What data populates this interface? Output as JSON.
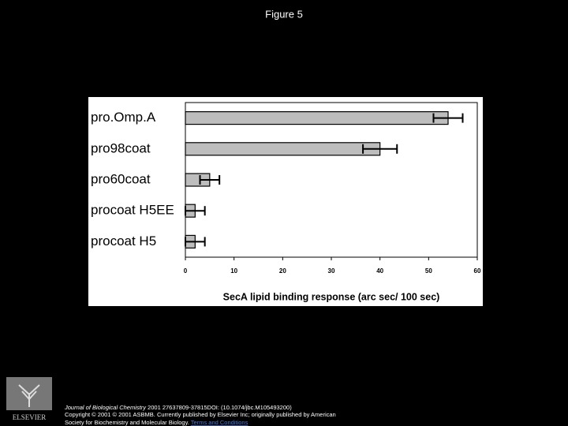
{
  "slide_title": "Figure 5",
  "chart_data": {
    "type": "bar",
    "orientation": "horizontal",
    "categories": [
      "pro.Omp.A",
      "pro98coat",
      "pro60coat",
      "procoat H5EE",
      "procoat H5"
    ],
    "values": [
      54,
      40,
      5,
      2,
      2
    ],
    "errors": [
      3,
      3.5,
      2,
      2,
      2
    ],
    "color": "#bdbdbd",
    "xlabel": "SecA lipid binding response (arc sec/ 100 sec)",
    "xlim": [
      0,
      60
    ],
    "xticks": [
      0,
      10,
      20,
      30,
      40,
      50,
      60
    ]
  },
  "footer": {
    "journal": "Journal of Biological Chemistry",
    "citation": " 2001 27637809-37815DOI: (10.1074/jbc.M105493200)",
    "copyright": "Copyright © 2001 © 2001 ASBMB. Currently published by Elsevier Inc; originally published by American",
    "society": "Society for Biochemistry and Molecular Biology. ",
    "terms": "Terms and Conditions",
    "logo_text": "ELSEVIER"
  }
}
